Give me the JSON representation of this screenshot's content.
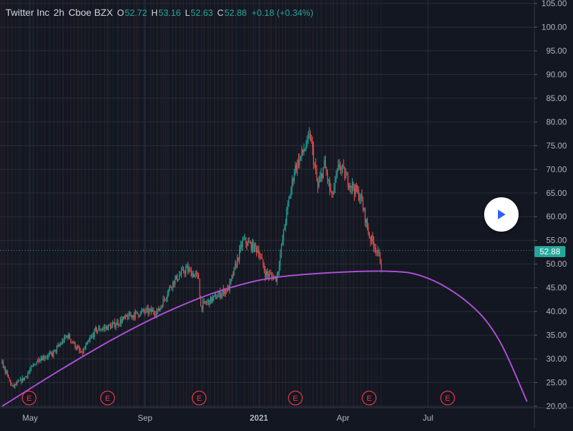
{
  "header": {
    "symbol": "Twitter Inc",
    "interval": "2h",
    "exchange": "Cboe BZX",
    "open_label": "O",
    "open": "52.72",
    "high_label": "H",
    "high": "53.16",
    "low_label": "L",
    "low": "52.63",
    "close_label": "C",
    "close": "52.88",
    "change": "+0.18 (+0.34%)"
  },
  "last_price": "52.88",
  "earnings_marker": "E",
  "play_button_icon": "play-icon",
  "colors": {
    "background": "#131722",
    "up": "#26a69a",
    "down": "#ef5350",
    "curve": "#b04fd6",
    "grid": "#2a2e39",
    "earnings": "#f23645"
  },
  "chart_data": {
    "type": "candlestick",
    "y_axis": {
      "min": 20,
      "max": 105,
      "step": 5,
      "tick_labels": [
        "105.00",
        "100.00",
        "95.00",
        "90.00",
        "85.00",
        "80.00",
        "75.00",
        "70.00",
        "65.00",
        "60.00",
        "55.00",
        "50.00",
        "45.00",
        "40.00",
        "35.00",
        "30.00",
        "25.00",
        "20.00"
      ]
    },
    "x_axis": {
      "tick_labels": [
        "May",
        "Sep",
        "2021",
        "Apr",
        "Jul"
      ],
      "tick_dates": [
        "2020-05-01",
        "2020-09-01",
        "2021-01-01",
        "2021-04-01",
        "2021-07-01"
      ],
      "range": [
        "2020-04-01",
        "2021-10-20"
      ]
    },
    "price_path": [
      [
        "2020-04-01",
        29
      ],
      [
        "2020-04-12",
        24
      ],
      [
        "2020-04-25",
        26
      ],
      [
        "2020-05-10",
        30
      ],
      [
        "2020-05-25",
        31
      ],
      [
        "2020-06-10",
        35
      ],
      [
        "2020-06-25",
        31
      ],
      [
        "2020-07-10",
        36
      ],
      [
        "2020-07-28",
        37
      ],
      [
        "2020-08-15",
        39
      ],
      [
        "2020-08-31",
        40
      ],
      [
        "2020-09-15",
        40
      ],
      [
        "2020-09-30",
        46
      ],
      [
        "2020-10-15",
        49
      ],
      [
        "2020-10-29",
        47
      ],
      [
        "2020-10-30",
        41
      ],
      [
        "2020-11-15",
        43
      ],
      [
        "2020-11-30",
        45
      ],
      [
        "2020-12-15",
        55
      ],
      [
        "2020-12-31",
        53
      ],
      [
        "2021-01-08",
        48
      ],
      [
        "2021-01-20",
        47
      ],
      [
        "2021-01-30",
        60
      ],
      [
        "2021-02-08",
        70
      ],
      [
        "2021-02-18",
        74
      ],
      [
        "2021-02-25",
        77
      ],
      [
        "2021-03-05",
        66
      ],
      [
        "2021-03-12",
        71
      ],
      [
        "2021-03-20",
        64
      ],
      [
        "2021-03-28",
        71
      ],
      [
        "2021-04-05",
        68
      ],
      [
        "2021-04-20",
        64
      ],
      [
        "2021-04-29",
        56
      ],
      [
        "2021-05-06",
        53.5
      ],
      [
        "2021-05-12",
        50
      ],
      [
        "2021-05-13",
        52.88
      ]
    ],
    "curve": [
      [
        "2020-04-01",
        20
      ],
      [
        "2020-06-01",
        27.5
      ],
      [
        "2020-08-01",
        34.5
      ],
      [
        "2020-10-01",
        40.5
      ],
      [
        "2020-12-01",
        45
      ],
      [
        "2021-02-01",
        47.5
      ],
      [
        "2021-05-15",
        48.5
      ],
      [
        "2021-07-01",
        47
      ],
      [
        "2021-08-15",
        41.5
      ],
      [
        "2021-09-15",
        34
      ],
      [
        "2021-10-15",
        21
      ]
    ],
    "earnings_dates": [
      "2020-04-30",
      "2020-07-23",
      "2020-10-29",
      "2021-02-09",
      "2021-04-29",
      "2021-07-22"
    ],
    "last_price": 52.88
  }
}
